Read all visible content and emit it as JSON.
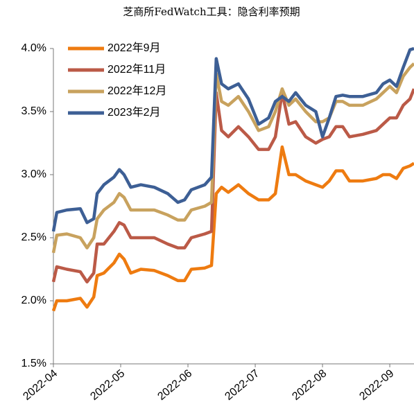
{
  "chart_data": {
    "type": "line",
    "title": "芝商所FedWatch工具：隐含利率预期",
    "x": [
      0,
      0.05,
      0.2,
      0.4,
      0.5,
      0.6,
      0.65,
      0.75,
      0.9,
      0.98,
      1.05,
      1.15,
      1.3,
      1.5,
      1.7,
      1.85,
      1.95,
      2.05,
      2.25,
      2.35,
      2.42,
      2.5,
      2.6,
      2.75,
      2.9,
      3.05,
      3.2,
      3.3,
      3.4,
      3.5,
      3.6,
      3.75,
      3.9,
      4.0,
      4.1,
      4.2,
      4.3,
      4.4,
      4.6,
      4.8,
      4.9,
      5.0,
      5.1,
      5.2,
      5.3,
      5.36
    ],
    "xlim": [
      0,
      5.36
    ],
    "xticks": [
      {
        "value": 0,
        "label": "2022-04"
      },
      {
        "value": 1,
        "label": "2022-05"
      },
      {
        "value": 2,
        "label": "2022-06"
      },
      {
        "value": 3,
        "label": "2022-07"
      },
      {
        "value": 4,
        "label": "2022-08"
      },
      {
        "value": 5,
        "label": "2022-09"
      }
    ],
    "ylim": [
      1.5,
      4.0
    ],
    "yticks": [
      {
        "value": 1.5,
        "label": "1.5%"
      },
      {
        "value": 2.0,
        "label": "2.0%"
      },
      {
        "value": 2.5,
        "label": "2.5%"
      },
      {
        "value": 3.0,
        "label": "3.0%"
      },
      {
        "value": 3.5,
        "label": "3.5%"
      },
      {
        "value": 4.0,
        "label": "4.0%"
      }
    ],
    "grid": false,
    "legend": "upper left",
    "series": [
      {
        "name": "2022年9月",
        "color": "#ee7b10",
        "values": [
          1.92,
          2.0,
          2.0,
          2.02,
          1.95,
          2.03,
          2.2,
          2.22,
          2.3,
          2.37,
          2.33,
          2.22,
          2.25,
          2.24,
          2.2,
          2.16,
          2.16,
          2.25,
          2.26,
          2.28,
          2.85,
          2.9,
          2.86,
          2.92,
          2.85,
          2.8,
          2.8,
          2.85,
          3.22,
          3.0,
          3.0,
          2.95,
          2.92,
          2.9,
          2.95,
          3.03,
          3.03,
          2.95,
          2.95,
          2.97,
          3.0,
          3.0,
          2.97,
          3.05,
          3.07,
          3.09
        ]
      },
      {
        "name": "2022年11月",
        "color": "#bb5a47",
        "values": [
          2.15,
          2.27,
          2.25,
          2.23,
          2.15,
          2.22,
          2.45,
          2.45,
          2.55,
          2.62,
          2.6,
          2.5,
          2.5,
          2.5,
          2.45,
          2.42,
          2.42,
          2.5,
          2.53,
          2.55,
          3.65,
          3.35,
          3.3,
          3.38,
          3.3,
          3.2,
          3.2,
          3.3,
          3.65,
          3.4,
          3.42,
          3.3,
          3.25,
          3.28,
          3.3,
          3.38,
          3.38,
          3.3,
          3.32,
          3.35,
          3.4,
          3.45,
          3.45,
          3.55,
          3.6,
          3.68
        ]
      },
      {
        "name": "2022年12月",
        "color": "#c8a25e",
        "values": [
          2.38,
          2.52,
          2.53,
          2.5,
          2.42,
          2.5,
          2.65,
          2.72,
          2.78,
          2.85,
          2.82,
          2.72,
          2.72,
          2.72,
          2.68,
          2.64,
          2.64,
          2.72,
          2.75,
          2.78,
          3.8,
          3.58,
          3.55,
          3.62,
          3.5,
          3.35,
          3.38,
          3.5,
          3.68,
          3.55,
          3.6,
          3.5,
          3.42,
          3.42,
          3.45,
          3.58,
          3.58,
          3.55,
          3.55,
          3.6,
          3.65,
          3.7,
          3.65,
          3.78,
          3.85,
          3.88
        ]
      },
      {
        "name": "2023年2月",
        "color": "#3d5f95",
        "values": [
          2.55,
          2.7,
          2.72,
          2.73,
          2.62,
          2.65,
          2.85,
          2.92,
          2.98,
          3.04,
          3.0,
          2.9,
          2.92,
          2.9,
          2.85,
          2.78,
          2.8,
          2.88,
          2.92,
          2.98,
          3.92,
          3.72,
          3.68,
          3.72,
          3.6,
          3.4,
          3.45,
          3.58,
          3.62,
          3.58,
          3.65,
          3.55,
          3.5,
          3.3,
          3.45,
          3.62,
          3.63,
          3.62,
          3.62,
          3.65,
          3.72,
          3.75,
          3.7,
          3.85,
          3.99,
          4.0
        ]
      }
    ]
  }
}
